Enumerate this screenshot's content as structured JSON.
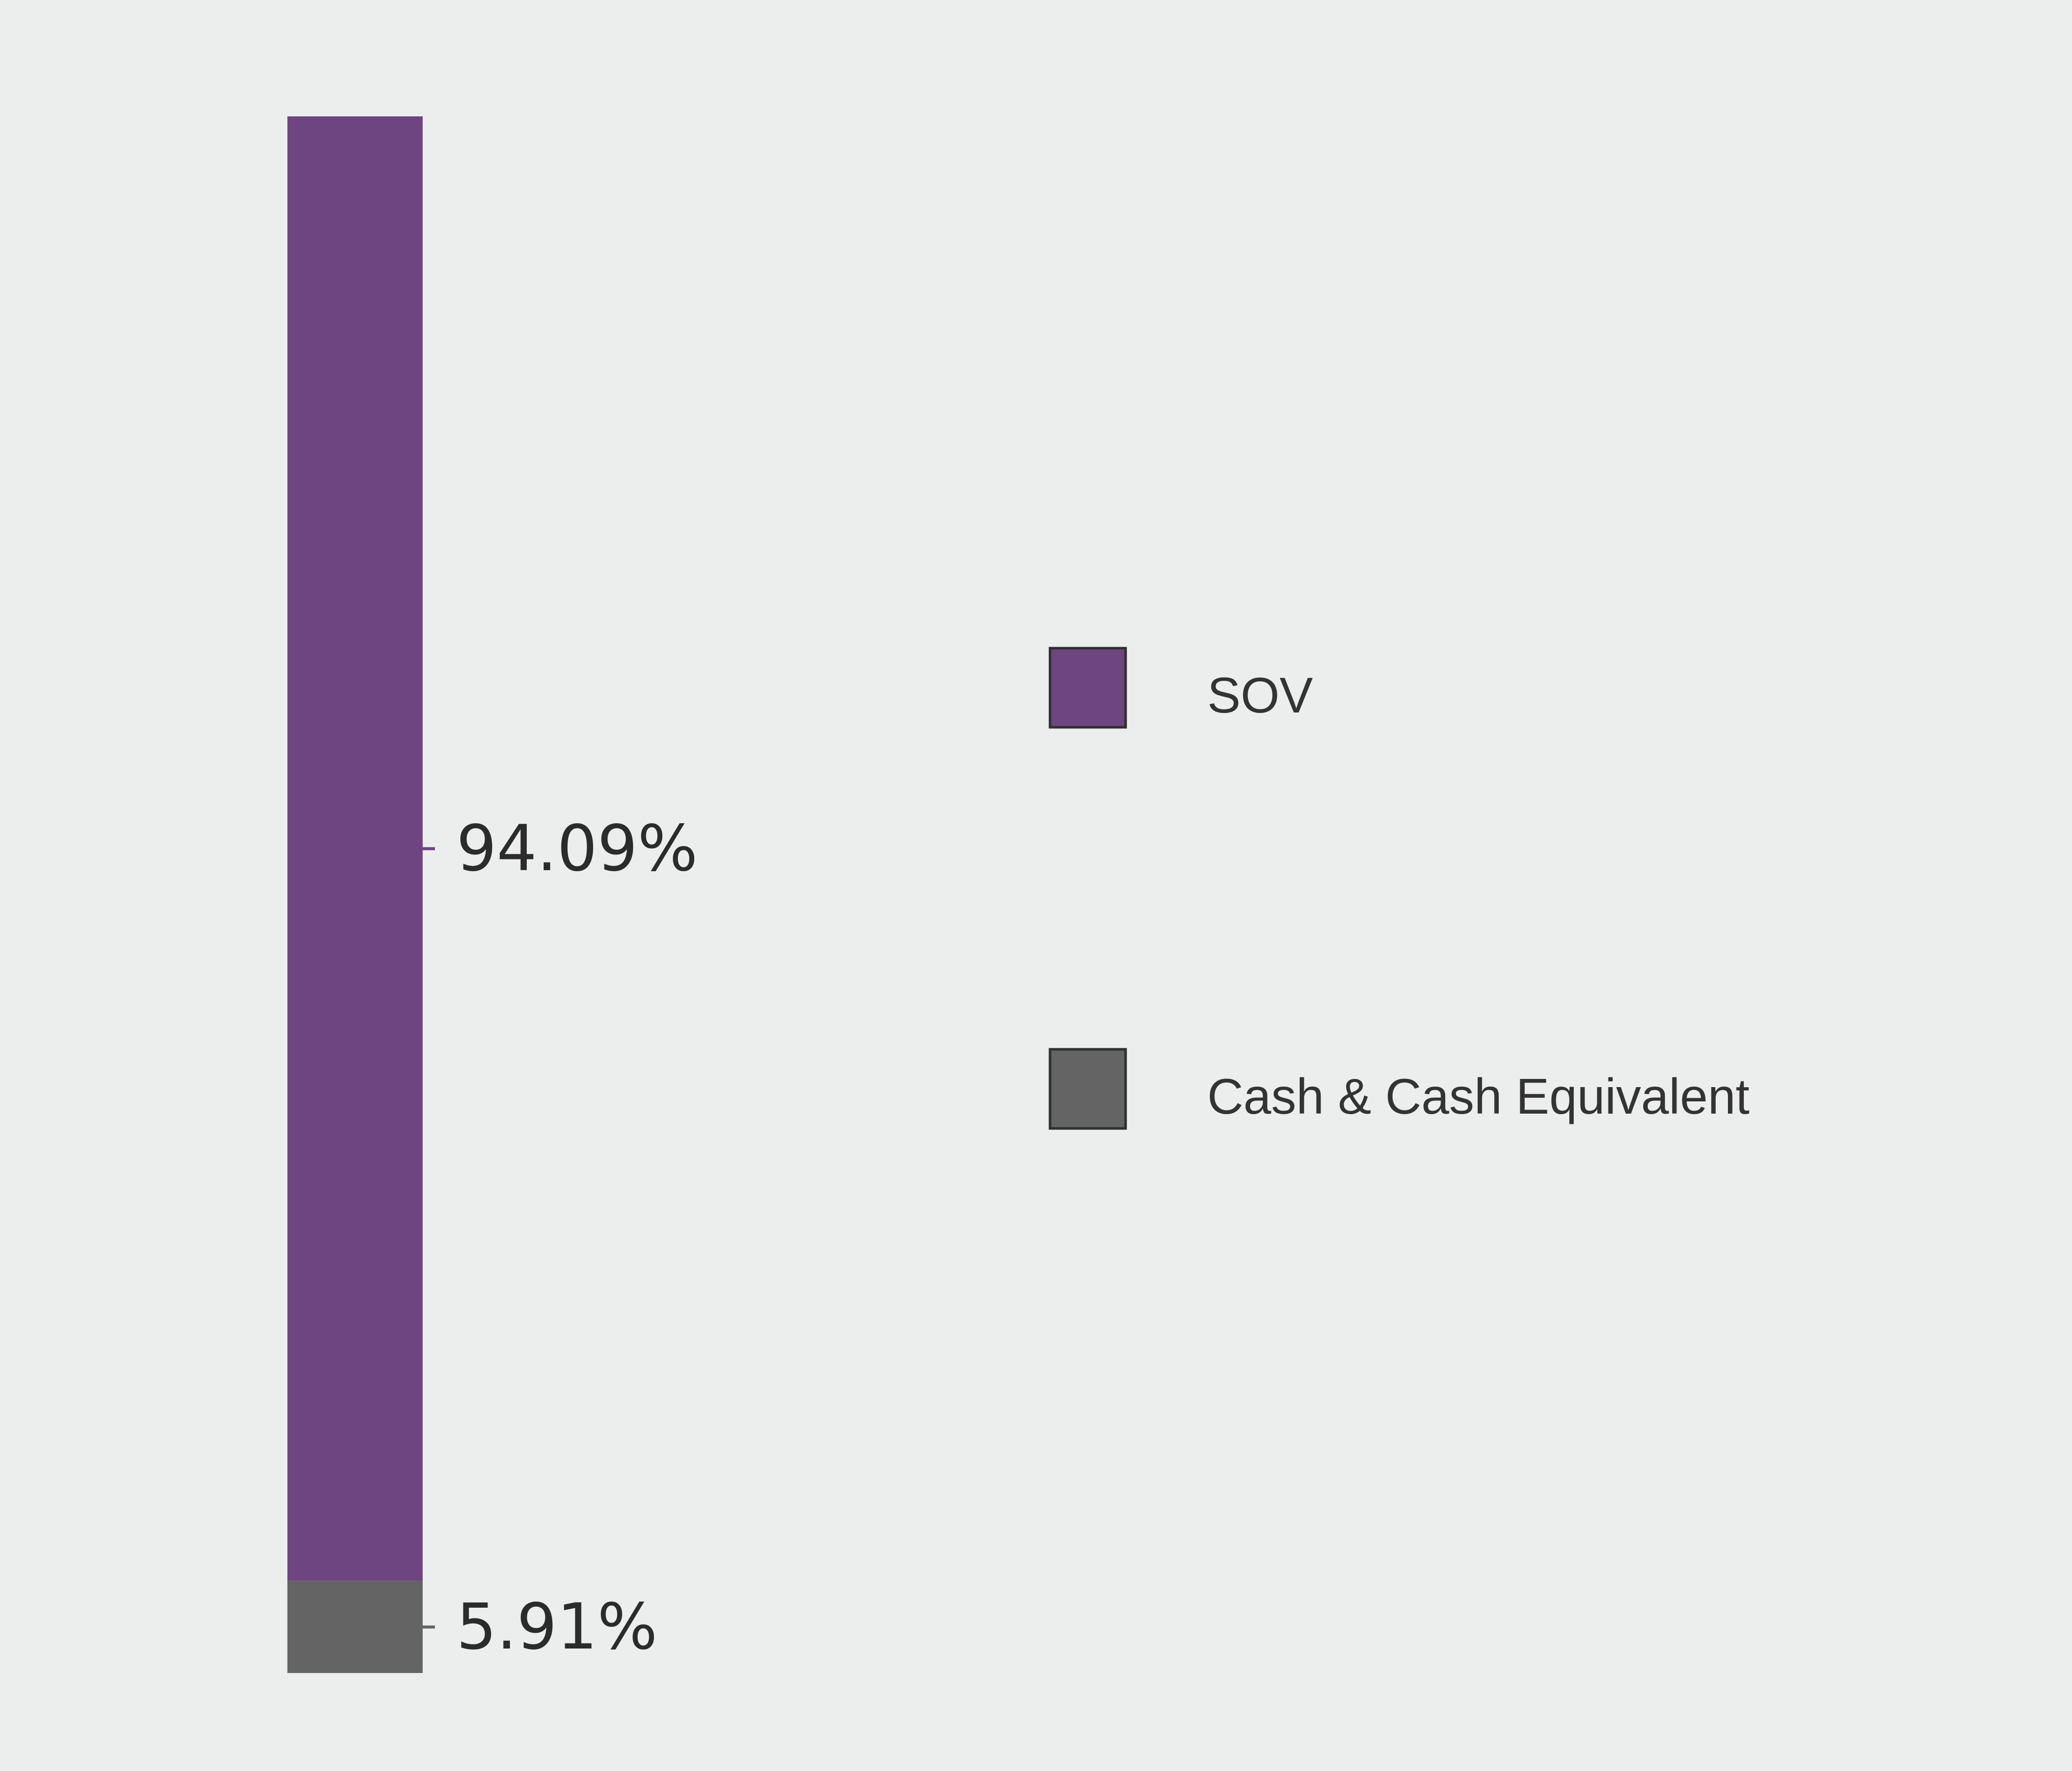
{
  "chart_data": {
    "type": "bar",
    "stacked": true,
    "orientation": "vertical",
    "unit": "%",
    "segments": [
      {
        "name": "SOV",
        "value": 94.09,
        "label": "94.09%",
        "color": "#6f4581"
      },
      {
        "name": "Cash & Cash Equivalent",
        "value": 5.91,
        "label": "5.91%",
        "color": "#646464"
      }
    ],
    "legend": {
      "placement": "right",
      "items": [
        {
          "label": "SOV",
          "color": "#6f4581"
        },
        {
          "label": "Cash & Cash Equivalent",
          "color": "#646464"
        }
      ]
    },
    "ylim": [
      0,
      100
    ],
    "grid": false
  }
}
